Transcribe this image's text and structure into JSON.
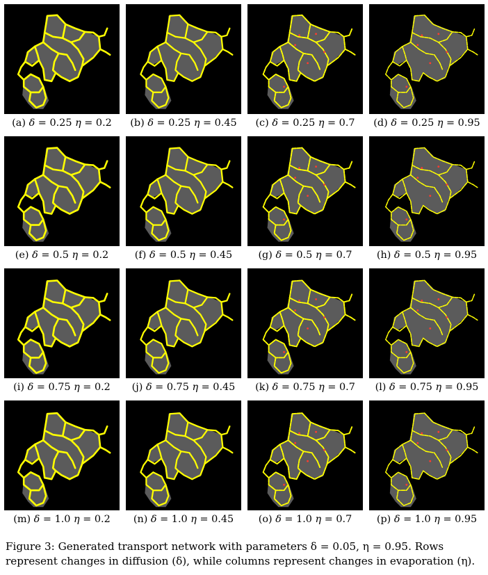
{
  "panels": [
    {
      "label": "(a)",
      "delta": "0.25",
      "eta": "0.2"
    },
    {
      "label": "(b)",
      "delta": "0.25",
      "eta": "0.45"
    },
    {
      "label": "(c)",
      "delta": "0.25",
      "eta": "0.7"
    },
    {
      "label": "(d)",
      "delta": "0.25",
      "eta": "0.95"
    },
    {
      "label": "(e)",
      "delta": "0.5",
      "eta": "0.2"
    },
    {
      "label": "(f)",
      "delta": "0.5",
      "eta": "0.45"
    },
    {
      "label": "(g)",
      "delta": "0.5",
      "eta": "0.7"
    },
    {
      "label": "(h)",
      "delta": "0.5",
      "eta": "0.95"
    },
    {
      "label": "(i)",
      "delta": "0.75",
      "eta": "0.2"
    },
    {
      "label": "(j)",
      "delta": "0.75",
      "eta": "0.45"
    },
    {
      "label": "(k)",
      "delta": "0.75",
      "eta": "0.7"
    },
    {
      "label": "(l)",
      "delta": "0.75",
      "eta": "0.95"
    },
    {
      "label": "(m)",
      "delta": "1.0",
      "eta": "0.2"
    },
    {
      "label": "(n)",
      "delta": "1.0",
      "eta": "0.45"
    },
    {
      "label": "(o)",
      "delta": "1.0",
      "eta": "0.7"
    },
    {
      "label": "(p)",
      "delta": "1.0",
      "eta": "0.95"
    }
  ],
  "caption": {
    "line1": "Figure 3:  Generated transport network with parameters δ = 0.05, η = 0.95.  Rows",
    "line2": "represent changes in diffusion (δ), while columns represent changes in evaporation (η)."
  },
  "colors": {
    "background": "#000000",
    "network": "#ffff00",
    "cells": "#7a7a7a",
    "nodes": "#ff3b2f"
  }
}
